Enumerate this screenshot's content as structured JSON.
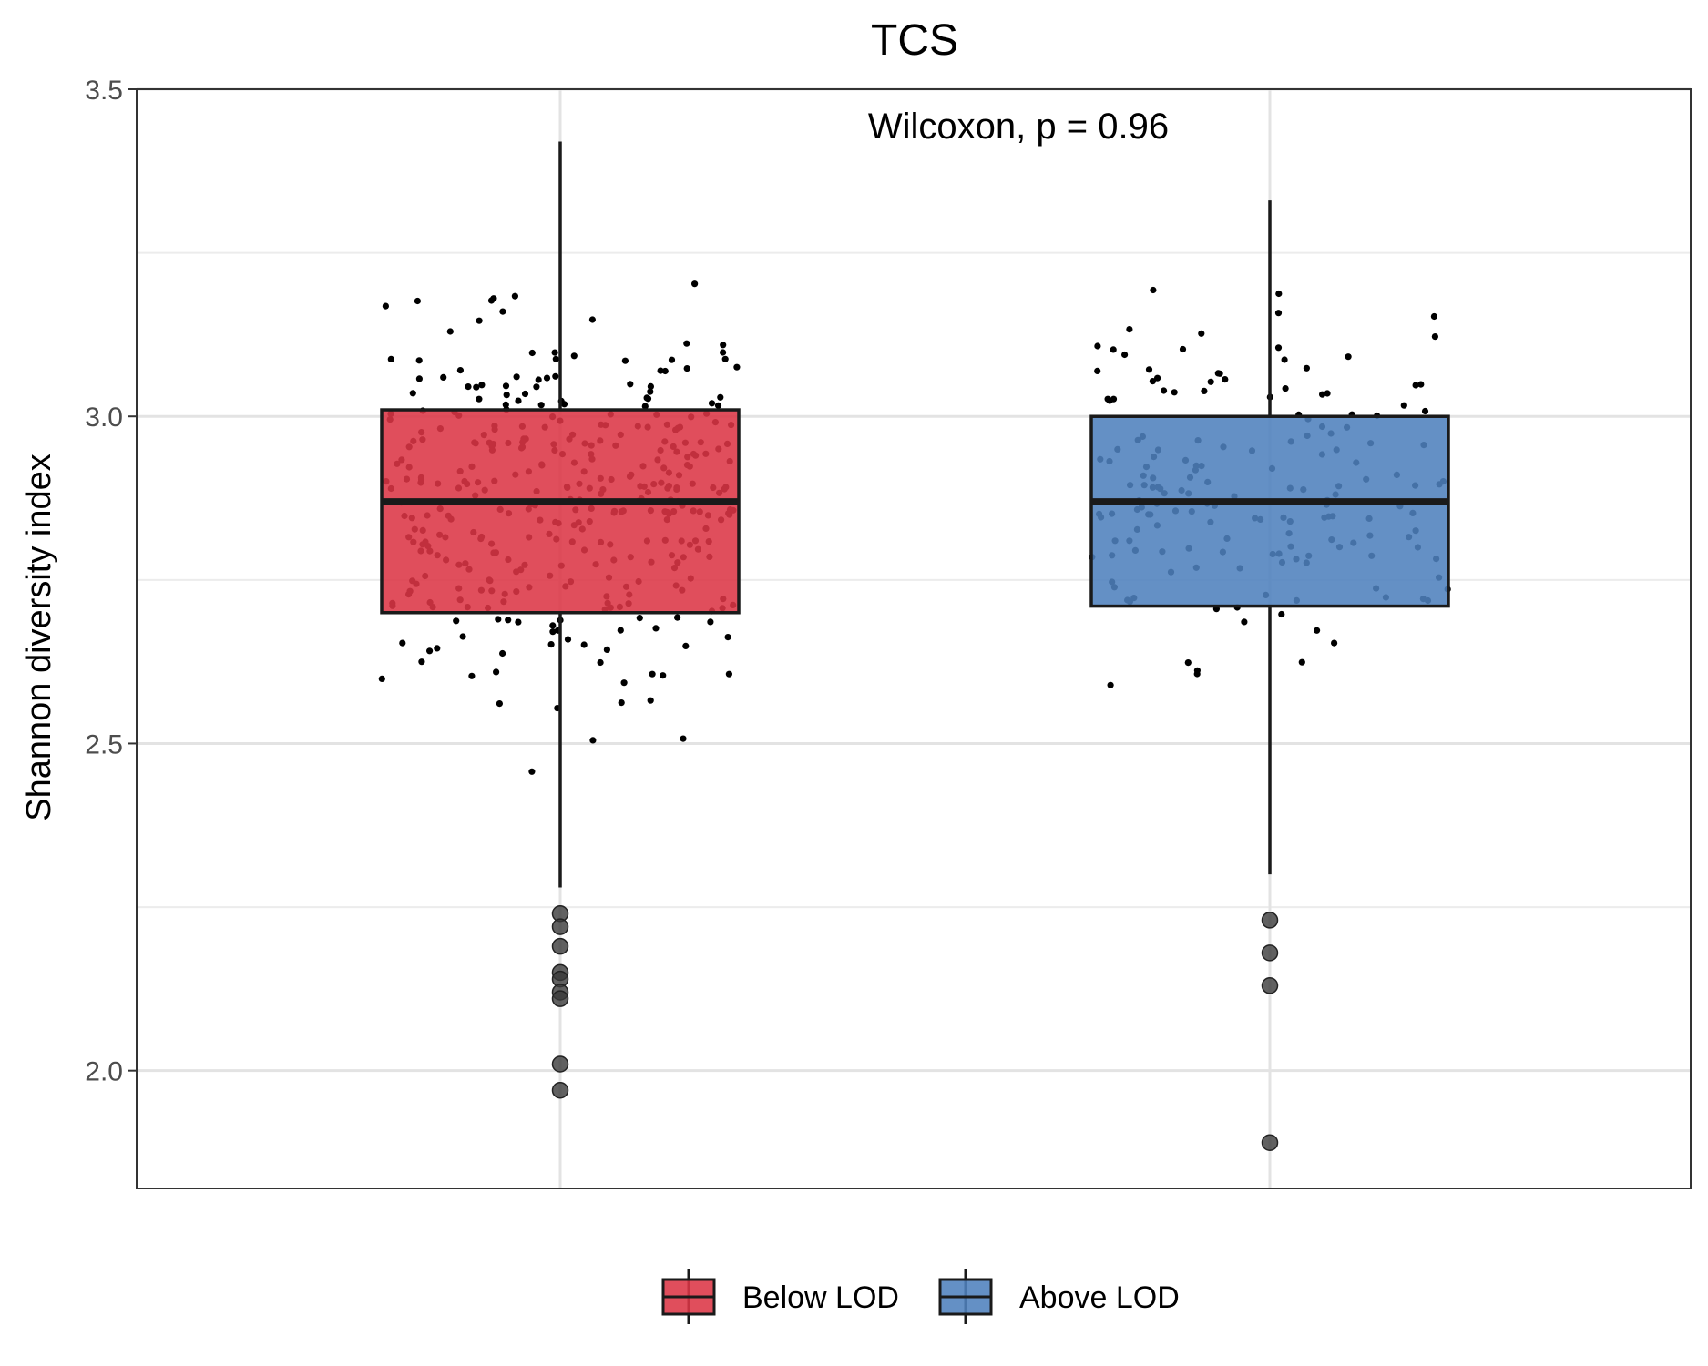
{
  "chart_data": {
    "type": "box",
    "title": "TCS",
    "xlabel": "",
    "ylabel": "Shannon diversity index",
    "ylim": [
      1.82,
      3.5
    ],
    "yticks": [
      "2.0",
      "2.5",
      "3.0",
      "3.5"
    ],
    "ytick_values": [
      2.0,
      2.5,
      3.0,
      3.5
    ],
    "grid": true,
    "legend_position": "bottom",
    "annotation": "Wilcoxon, p = 0.96",
    "groups": [
      {
        "name": "Below LOD",
        "color": "#DC3545",
        "whisker_low": 2.28,
        "q1": 2.7,
        "median": 2.87,
        "q3": 3.01,
        "whisker_high": 3.42,
        "outliers": [
          2.24,
          2.22,
          2.19,
          2.15,
          2.14,
          2.12,
          2.11,
          2.01,
          1.97
        ]
      },
      {
        "name": "Above LOD",
        "color": "#4F81BD",
        "whisker_low": 2.3,
        "q1": 2.71,
        "median": 2.87,
        "q3": 3.0,
        "whisker_high": 3.33,
        "outliers": [
          2.23,
          2.18,
          2.13,
          1.89
        ]
      }
    ]
  }
}
